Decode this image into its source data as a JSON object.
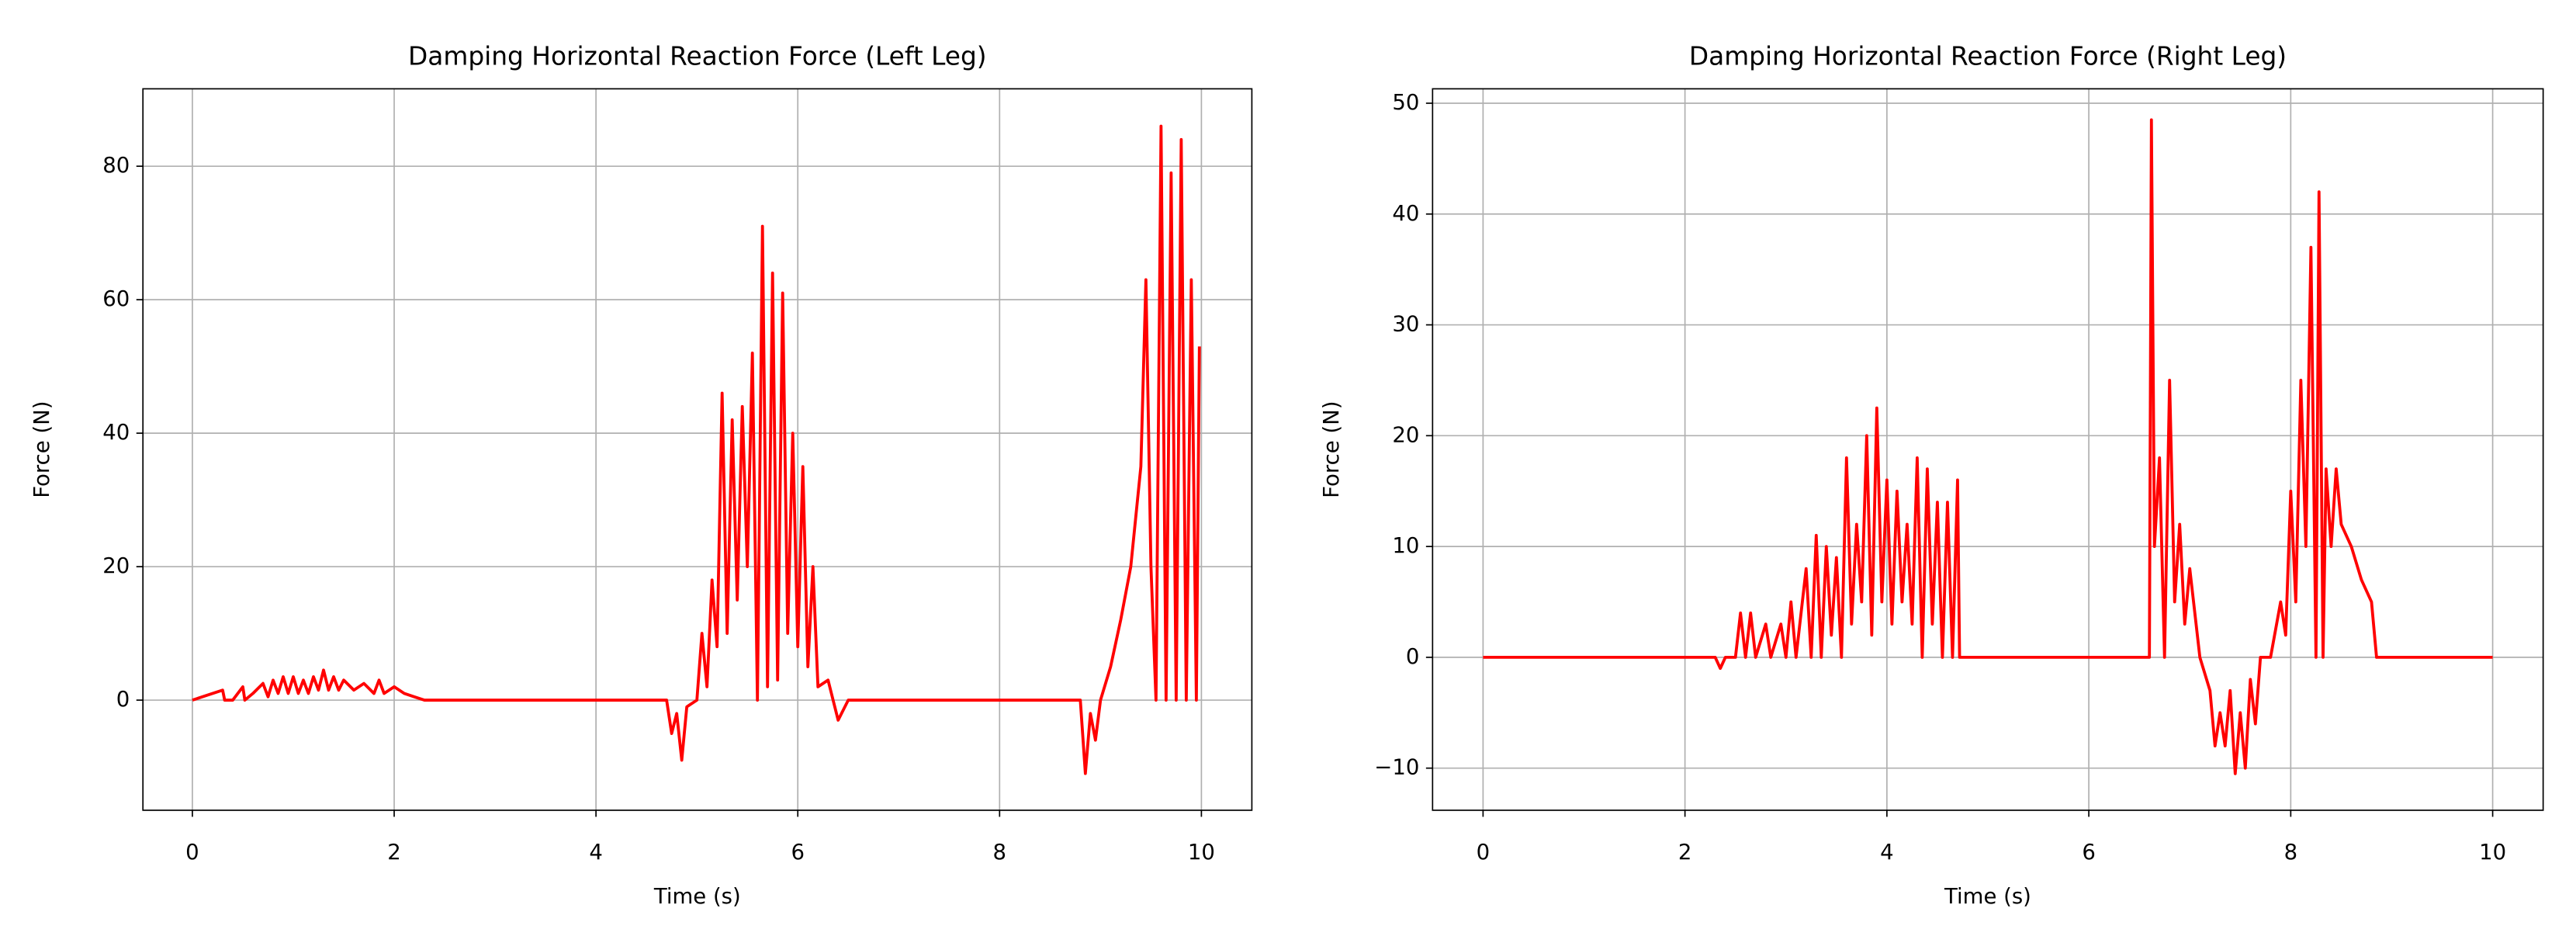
{
  "chart_data": [
    {
      "type": "line",
      "title": "Damping Horizontal Reaction Force (Left Leg)",
      "x_label": "Time (s)",
      "y_label": "Force (N)",
      "x": [
        0,
        0.3,
        0.32,
        0.4,
        0.5,
        0.52,
        0.6,
        0.7,
        0.75,
        0.8,
        0.85,
        0.9,
        0.95,
        1.0,
        1.05,
        1.1,
        1.15,
        1.2,
        1.25,
        1.3,
        1.35,
        1.4,
        1.45,
        1.5,
        1.6,
        1.7,
        1.8,
        1.85,
        1.9,
        2.0,
        2.1,
        2.2,
        2.3,
        4.7,
        4.75,
        4.8,
        4.85,
        4.9,
        5.0,
        5.05,
        5.1,
        5.15,
        5.2,
        5.25,
        5.3,
        5.35,
        5.4,
        5.45,
        5.5,
        5.55,
        5.6,
        5.65,
        5.7,
        5.75,
        5.8,
        5.85,
        5.9,
        5.95,
        6.0,
        6.05,
        6.1,
        6.15,
        6.2,
        6.3,
        6.4,
        6.5,
        8.8,
        8.85,
        8.9,
        8.95,
        9.0,
        9.1,
        9.2,
        9.3,
        9.4,
        9.45,
        9.5,
        9.55,
        9.6,
        9.65,
        9.7,
        9.75,
        9.8,
        9.85,
        9.9,
        9.95,
        9.98
      ],
      "values": [
        0,
        1.5,
        0,
        0,
        2,
        0,
        1,
        2.5,
        0.5,
        3,
        1,
        3.5,
        1,
        3.5,
        1,
        3,
        1,
        3.5,
        1.5,
        4.5,
        1.5,
        3.5,
        1.5,
        3,
        1.5,
        2.5,
        1,
        3,
        1,
        2,
        1,
        0.5,
        0,
        0,
        -5,
        -2,
        -9,
        -1,
        0,
        10,
        2,
        18,
        8,
        46,
        10,
        42,
        15,
        44,
        20,
        52,
        0,
        71,
        2,
        64,
        3,
        61,
        10,
        40,
        8,
        35,
        5,
        20,
        2,
        3,
        -3,
        0,
        0,
        -11,
        -2,
        -6,
        0,
        5,
        12,
        20,
        35,
        63,
        20,
        0,
        86,
        0,
        79,
        0,
        84,
        0,
        63,
        0,
        53
      ],
      "color": "#ff0000",
      "xlim": [
        -0.49,
        10.5
      ],
      "ylim": [
        -16.5,
        91.6
      ],
      "xticks": [
        0,
        2,
        4,
        6,
        8,
        10
      ],
      "yticks": [
        0,
        20,
        40,
        60,
        80
      ],
      "grid": true
    },
    {
      "type": "line",
      "title": "Damping Horizontal Reaction Force (Right Leg)",
      "x_label": "Time (s)",
      "y_label": "Force (N)",
      "x": [
        0,
        2.3,
        2.35,
        2.4,
        2.5,
        2.55,
        2.6,
        2.65,
        2.7,
        2.8,
        2.85,
        2.95,
        3.0,
        3.05,
        3.1,
        3.2,
        3.25,
        3.3,
        3.35,
        3.4,
        3.45,
        3.5,
        3.55,
        3.6,
        3.65,
        3.7,
        3.75,
        3.8,
        3.85,
        3.9,
        3.95,
        4.0,
        4.05,
        4.1,
        4.15,
        4.2,
        4.25,
        4.3,
        4.35,
        4.4,
        4.45,
        4.5,
        4.55,
        4.6,
        4.65,
        4.7,
        4.72,
        6.6,
        6.62,
        6.65,
        6.7,
        6.75,
        6.8,
        6.85,
        6.9,
        6.95,
        7.0,
        7.1,
        7.2,
        7.25,
        7.3,
        7.35,
        7.4,
        7.45,
        7.5,
        7.55,
        7.6,
        7.65,
        7.7,
        7.8,
        7.9,
        7.95,
        8.0,
        8.05,
        8.1,
        8.15,
        8.2,
        8.25,
        8.28,
        8.32,
        8.35,
        8.4,
        8.45,
        8.5,
        8.6,
        8.7,
        8.8,
        8.85,
        10
      ],
      "values": [
        0,
        0,
        -1,
        0,
        0,
        4,
        0,
        4,
        0,
        3,
        0,
        3,
        0,
        5,
        0,
        8,
        0,
        11,
        0,
        10,
        2,
        9,
        0,
        18,
        3,
        12,
        5,
        20,
        2,
        22.5,
        5,
        16,
        3,
        15,
        5,
        12,
        3,
        18,
        0,
        17,
        3,
        14,
        0,
        14,
        0,
        16,
        0,
        0,
        48.5,
        10,
        18,
        0,
        25,
        5,
        12,
        3,
        8,
        0,
        -3,
        -8,
        -5,
        -8,
        -3,
        -10.5,
        -5,
        -10,
        -2,
        -6,
        0,
        0,
        5,
        2,
        15,
        5,
        25,
        10,
        37,
        0,
        42,
        0,
        17,
        10,
        17,
        12,
        10,
        7,
        5,
        0,
        0
      ],
      "color": "#ff0000",
      "xlim": [
        -0.5,
        10.5
      ],
      "ylim": [
        -13.8,
        51.3
      ],
      "xticks": [
        0,
        2,
        4,
        6,
        8,
        10
      ],
      "yticks": [
        {
          "value": -10,
          "label": "−10"
        },
        0,
        10,
        20,
        30,
        40,
        50
      ],
      "grid": true
    }
  ]
}
